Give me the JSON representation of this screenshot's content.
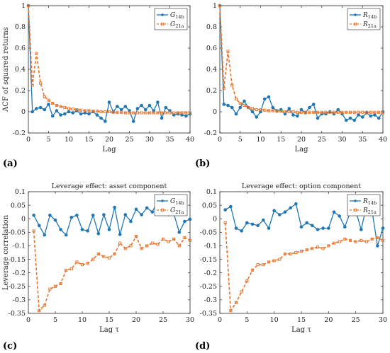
{
  "chart_data": [
    {
      "type": "line",
      "panel_label": "(a)",
      "title": "",
      "xlabel": "Lag",
      "ylabel": "ACF of squared returns",
      "xlim": [
        0,
        40
      ],
      "ylim": [
        -0.2,
        1
      ],
      "xticks": [
        "0",
        "5",
        "10",
        "15",
        "20",
        "25",
        "30",
        "35",
        "40"
      ],
      "yticks": [
        "-0.2",
        "0",
        "0.2",
        "0.4",
        "0.6",
        "0.8",
        "1"
      ],
      "legend_position": "top-right",
      "series": [
        {
          "name": "G14b",
          "legend_main": "G",
          "legend_sub": "14b",
          "color": "#1f77b4",
          "style": "solid",
          "marker": "circle",
          "x": [
            0,
            1,
            2,
            3,
            4,
            5,
            6,
            7,
            8,
            9,
            10,
            11,
            12,
            13,
            14,
            15,
            16,
            17,
            18,
            19,
            20,
            21,
            22,
            23,
            24,
            25,
            26,
            27,
            28,
            29,
            30,
            31,
            32,
            33,
            34,
            35,
            36,
            37,
            38,
            39,
            40
          ],
          "y": [
            1,
            0.0,
            0.03,
            0.04,
            0.02,
            0.07,
            -0.04,
            0.01,
            -0.03,
            -0.02,
            0.0,
            -0.01,
            0.01,
            -0.02,
            -0.01,
            -0.02,
            0.0,
            -0.03,
            -0.06,
            -0.09,
            0.09,
            0.0,
            0.05,
            0.02,
            0.05,
            0.01,
            -0.09,
            0.03,
            0.06,
            0.02,
            0.06,
            0.01,
            0.09,
            -0.06,
            0.04,
            0.01,
            -0.03,
            -0.02,
            -0.03,
            -0.04,
            -0.02
          ]
        },
        {
          "name": "G21a",
          "legend_main": "G",
          "legend_sub": "21a",
          "color": "#e8732a",
          "style": "dashed",
          "marker": "square",
          "x": [
            0,
            1,
            2,
            3,
            4,
            5,
            6,
            7,
            8,
            9,
            10,
            11,
            12,
            13,
            14,
            15,
            16,
            17,
            18,
            19,
            20,
            21,
            22,
            23,
            24,
            25,
            26,
            27,
            28,
            29,
            30,
            31,
            32,
            33,
            34,
            35,
            36,
            37,
            38,
            39,
            40
          ],
          "y": [
            1,
            0.25,
            0.55,
            0.27,
            0.14,
            0.11,
            0.08,
            0.06,
            0.05,
            0.04,
            0.03,
            0.025,
            0.02,
            0.015,
            0.01,
            0.01,
            0.005,
            0.005,
            0.0,
            0.0,
            0.0,
            -0.005,
            -0.005,
            -0.005,
            -0.01,
            -0.01,
            -0.01,
            -0.01,
            -0.01,
            -0.01,
            -0.01,
            -0.01,
            -0.01,
            -0.01,
            -0.01,
            -0.01,
            -0.01,
            -0.01,
            -0.01,
            -0.01,
            -0.01
          ]
        }
      ]
    },
    {
      "type": "line",
      "panel_label": "(b)",
      "title": "",
      "xlabel": "Lag",
      "ylabel": "",
      "xlim": [
        0,
        40
      ],
      "ylim": [
        -0.2,
        1
      ],
      "xticks": [
        "0",
        "5",
        "10",
        "15",
        "20",
        "25",
        "30",
        "35",
        "40"
      ],
      "yticks": [
        "-0.2",
        "0",
        "0.2",
        "0.4",
        "0.6",
        "0.8",
        "1"
      ],
      "legend_position": "top-right",
      "series": [
        {
          "name": "R14b",
          "legend_main": "R",
          "legend_sub": "14b",
          "color": "#1f77b4",
          "style": "solid",
          "marker": "circle",
          "x": [
            0,
            1,
            2,
            3,
            4,
            5,
            6,
            7,
            8,
            9,
            10,
            11,
            12,
            13,
            14,
            15,
            16,
            17,
            18,
            19,
            20,
            21,
            22,
            23,
            24,
            25,
            26,
            27,
            28,
            29,
            30,
            31,
            32,
            33,
            34,
            35,
            36,
            37,
            38,
            39,
            40
          ],
          "y": [
            1,
            0.07,
            0.06,
            0.04,
            -0.02,
            0.04,
            0.1,
            0.04,
            0.0,
            -0.05,
            0.0,
            0.12,
            0.14,
            0.04,
            0.01,
            0.02,
            -0.02,
            0.03,
            -0.03,
            -0.04,
            0.02,
            -0.01,
            0.04,
            0.07,
            -0.06,
            -0.02,
            -0.02,
            0.0,
            -0.02,
            0.02,
            -0.02,
            -0.08,
            -0.06,
            -0.08,
            -0.03,
            -0.05,
            -0.01,
            -0.04,
            -0.03,
            -0.06,
            0.0
          ]
        },
        {
          "name": "R21a",
          "legend_main": "R",
          "legend_sub": "21a",
          "color": "#e8732a",
          "style": "dashed",
          "marker": "square",
          "x": [
            0,
            1,
            2,
            3,
            4,
            5,
            6,
            7,
            8,
            9,
            10,
            11,
            12,
            13,
            14,
            15,
            16,
            17,
            18,
            19,
            20,
            21,
            22,
            23,
            24,
            25,
            26,
            27,
            28,
            29,
            30,
            31,
            32,
            33,
            34,
            35,
            36,
            37,
            38,
            39,
            40
          ],
          "y": [
            1,
            0.22,
            0.57,
            0.25,
            0.12,
            0.08,
            0.06,
            0.04,
            0.03,
            0.02,
            0.02,
            0.015,
            0.01,
            0.01,
            0.005,
            0.005,
            0.0,
            0.0,
            0.0,
            -0.005,
            -0.005,
            -0.005,
            -0.005,
            -0.005,
            -0.005,
            -0.005,
            -0.005,
            -0.005,
            -0.005,
            -0.005,
            -0.005,
            -0.005,
            -0.005,
            -0.005,
            -0.005,
            -0.005,
            -0.005,
            -0.005,
            -0.005,
            -0.005,
            -0.005
          ]
        }
      ]
    },
    {
      "type": "line",
      "panel_label": "(c)",
      "title": "Leverage effect: asset component",
      "xlabel": "Lag τ",
      "ylabel": "Leverage correlation",
      "xlim": [
        0,
        30
      ],
      "ylim": [
        -0.35,
        0.1
      ],
      "xticks": [
        "0",
        "5",
        "10",
        "15",
        "20",
        "25",
        "30"
      ],
      "yticks": [
        "-0.35",
        "-0.3",
        "-0.25",
        "-0.2",
        "-0.15",
        "-0.1",
        "-0.05",
        "0",
        "0.05",
        "0.1"
      ],
      "legend_position": "top-right",
      "series": [
        {
          "name": "G14b",
          "legend_main": "G",
          "legend_sub": "14b",
          "color": "#1f77b4",
          "style": "solid",
          "marker": "circle",
          "x": [
            1,
            2,
            3,
            4,
            5,
            6,
            7,
            8,
            9,
            10,
            11,
            12,
            13,
            14,
            15,
            16,
            17,
            18,
            19,
            20,
            21,
            22,
            23,
            24,
            25,
            26,
            27,
            28,
            29,
            30
          ],
          "y": [
            0.013,
            -0.025,
            -0.06,
            0.013,
            -0.005,
            -0.04,
            -0.06,
            0.005,
            0.013,
            -0.04,
            -0.045,
            0.013,
            -0.055,
            0.015,
            -0.04,
            0.042,
            -0.058,
            0.015,
            -0.01,
            0.035,
            0.015,
            0.04,
            0.025,
            0.065,
            0.06,
            0.015,
            0.018,
            -0.05,
            -0.01,
            -0.002
          ]
        },
        {
          "name": "G21a",
          "legend_main": "G",
          "legend_sub": "21a",
          "color": "#e8732a",
          "style": "dashed",
          "marker": "square",
          "x": [
            1,
            2,
            3,
            4,
            5,
            6,
            7,
            8,
            9,
            10,
            11,
            12,
            13,
            14,
            15,
            16,
            17,
            18,
            19,
            20,
            21,
            22,
            23,
            24,
            25,
            26,
            27,
            28,
            29,
            30
          ],
          "y": [
            -0.045,
            -0.34,
            -0.32,
            -0.26,
            -0.25,
            -0.24,
            -0.19,
            -0.185,
            -0.16,
            -0.17,
            -0.165,
            -0.15,
            -0.13,
            -0.14,
            -0.145,
            -0.13,
            -0.09,
            -0.11,
            -0.1,
            -0.065,
            -0.11,
            -0.1,
            -0.09,
            -0.095,
            -0.075,
            -0.085,
            -0.075,
            -0.1,
            -0.07,
            -0.08
          ]
        }
      ]
    },
    {
      "type": "line",
      "panel_label": "(d)",
      "title": "Leverage effect: option component",
      "xlabel": "Lag τ",
      "ylabel": "",
      "xlim": [
        0,
        30
      ],
      "ylim": [
        -0.35,
        0.1
      ],
      "xticks": [
        "0",
        "5",
        "10",
        "15",
        "20",
        "25",
        "30"
      ],
      "yticks": [
        "-0.35",
        "-0.3",
        "-0.25",
        "-0.2",
        "-0.15",
        "-0.1",
        "-0.05",
        "0",
        "0.05",
        "0.1"
      ],
      "legend_position": "top-right",
      "series": [
        {
          "name": "R14b",
          "legend_main": "R",
          "legend_sub": "14b",
          "color": "#1f77b4",
          "style": "solid",
          "marker": "circle",
          "x": [
            1,
            2,
            3,
            4,
            5,
            6,
            7,
            8,
            9,
            10,
            11,
            12,
            13,
            14,
            15,
            16,
            17,
            18,
            19,
            20,
            21,
            22,
            23,
            24,
            25,
            26,
            27,
            28,
            29,
            30
          ],
          "y": [
            0.033,
            0.045,
            -0.035,
            -0.045,
            -0.015,
            -0.02,
            -0.025,
            -0.005,
            -0.035,
            0.03,
            0.015,
            0.025,
            0.04,
            0.055,
            -0.03,
            -0.015,
            -0.025,
            -0.04,
            -0.035,
            -0.035,
            0.025,
            0.01,
            -0.03,
            0.025,
            0.03,
            -0.04,
            0.05,
            0.03,
            -0.1,
            -0.035
          ]
        },
        {
          "name": "R21a",
          "legend_main": "R",
          "legend_sub": "21a",
          "color": "#e8732a",
          "style": "dashed",
          "marker": "square",
          "x": [
            1,
            2,
            3,
            4,
            5,
            6,
            7,
            8,
            9,
            10,
            11,
            12,
            13,
            14,
            15,
            16,
            17,
            18,
            19,
            20,
            21,
            22,
            23,
            24,
            25,
            26,
            27,
            28,
            29,
            30
          ],
          "y": [
            -0.015,
            -0.34,
            -0.31,
            -0.27,
            -0.23,
            -0.19,
            -0.17,
            -0.17,
            -0.16,
            -0.155,
            -0.15,
            -0.13,
            -0.13,
            -0.125,
            -0.12,
            -0.115,
            -0.11,
            -0.105,
            -0.11,
            -0.1,
            -0.09,
            -0.085,
            -0.075,
            -0.08,
            -0.085,
            -0.08,
            -0.085,
            -0.075,
            -0.07,
            -0.08
          ]
        }
      ]
    }
  ]
}
